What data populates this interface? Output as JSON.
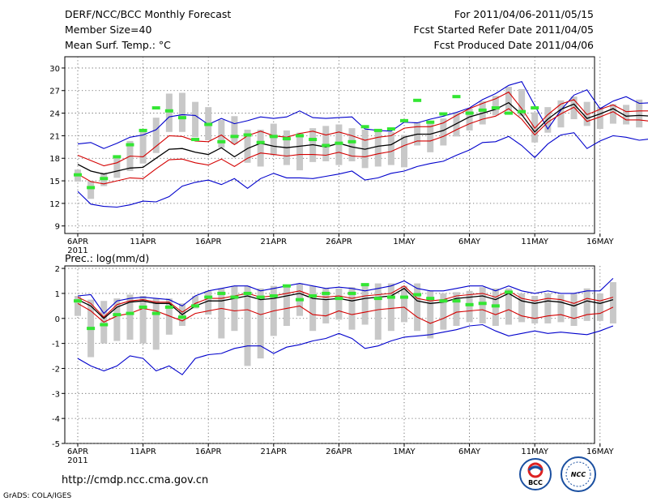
{
  "header": {
    "title": "DERF/NCC/BCC Monthly Forecast",
    "member_size": "Member Size=40",
    "variable": "Mean Surf. Temp.: °C",
    "period": "For 2011/04/06-2011/05/15",
    "started": "Fcst Started Refer Date 2011/04/05",
    "produced": "Fcst Produced Date 2011/04/06"
  },
  "footer": {
    "url": "http://cmdp.ncc.cma.gov.cn",
    "credit": "GrADS: COLA/IGES",
    "logo_bcc": "BCC",
    "logo_ncc": "NCC"
  },
  "colors": {
    "ensemble_mean": "#000000",
    "spread": "#d40000",
    "envelope": "#0000cc",
    "member_range": "#c8c8c8",
    "observed_marker": "#33e633",
    "grid": "#555555"
  },
  "chart_data": [
    {
      "type": "line",
      "title": "Mean Surf. Temp.: °C",
      "x_tick_labels": [
        "6APR",
        "11APR",
        "16APR",
        "21APR",
        "26APR",
        "1MAY",
        "6MAY",
        "11MAY",
        "16MAY"
      ],
      "x_start_year_label": "2011",
      "yticks": [
        "9",
        "12",
        "15",
        "18",
        "21",
        "24",
        "27",
        "30"
      ],
      "ylim": [
        8,
        31.5
      ],
      "series": [
        {
          "name": "ensemble_mean",
          "values": [
            17.2,
            16.3,
            15.9,
            16.3,
            16.7,
            16.8,
            18.0,
            19.2,
            19.3,
            18.8,
            18.5,
            19.4,
            18.2,
            19.3,
            20.0,
            19.6,
            19.4,
            19.6,
            19.8,
            19.5,
            20.0,
            19.5,
            19.2,
            19.6,
            19.8,
            20.8,
            21.2,
            21.2,
            21.7,
            22.6,
            23.5,
            24.0,
            24.5,
            25.4,
            23.8,
            21.5,
            23.2,
            24.5,
            25.2,
            23.3,
            23.9,
            24.6,
            23.6,
            23.7,
            23.6
          ]
        },
        {
          "name": "upper_spread",
          "values": [
            18.4,
            17.7,
            17.0,
            17.4,
            18.3,
            18.2,
            19.6,
            21.0,
            20.9,
            20.3,
            20.2,
            21.1,
            19.8,
            21.0,
            21.6,
            21.0,
            20.8,
            21.3,
            21.6,
            21.1,
            21.5,
            21.0,
            20.4,
            20.8,
            21.0,
            22.0,
            22.2,
            22.2,
            22.7,
            23.7,
            24.6,
            25.3,
            25.9,
            26.8,
            24.6,
            22.0,
            23.8,
            25.2,
            25.8,
            23.8,
            24.5,
            25.1,
            24.2,
            24.3,
            24.3
          ]
        },
        {
          "name": "lower_spread",
          "values": [
            15.9,
            14.9,
            14.6,
            15.0,
            15.4,
            15.3,
            16.6,
            17.8,
            17.9,
            17.4,
            17.1,
            17.9,
            16.9,
            18.0,
            18.7,
            18.5,
            18.3,
            18.5,
            18.5,
            18.4,
            18.8,
            18.3,
            18.2,
            18.6,
            18.9,
            19.7,
            20.3,
            20.3,
            20.9,
            21.8,
            22.6,
            23.2,
            23.6,
            24.6,
            23.2,
            21.1,
            22.8,
            23.9,
            24.8,
            22.9,
            23.5,
            24.2,
            23.1,
            23.1,
            22.9
          ]
        },
        {
          "name": "upper_envelope",
          "values": [
            19.9,
            20.1,
            19.3,
            20.0,
            20.8,
            21.1,
            21.8,
            23.5,
            23.8,
            23.7,
            22.5,
            23.3,
            22.6,
            23.0,
            23.5,
            23.3,
            23.5,
            24.3,
            23.4,
            23.3,
            23.4,
            23.5,
            21.9,
            21.7,
            21.6,
            22.8,
            22.7,
            23.2,
            23.6,
            24.1,
            24.7,
            25.8,
            26.6,
            27.7,
            28.2,
            25.0,
            21.9,
            24.4,
            26.4,
            27.1,
            24.6,
            25.6,
            26.2,
            25.3,
            25.4,
            25.7
          ]
        },
        {
          "name": "lower_envelope",
          "values": [
            13.6,
            11.9,
            11.6,
            11.5,
            11.8,
            12.3,
            12.2,
            12.9,
            14.3,
            14.8,
            15.1,
            14.5,
            15.3,
            14.0,
            15.3,
            16.0,
            15.4,
            15.4,
            15.3,
            15.6,
            15.9,
            16.3,
            15.1,
            15.4,
            16.0,
            16.3,
            16.9,
            17.3,
            17.6,
            18.4,
            19.1,
            20.1,
            20.2,
            20.9,
            19.7,
            18.1,
            19.9,
            21.1,
            21.4,
            19.3,
            20.3,
            21.0,
            20.8,
            20.4,
            20.6
          ]
        },
        {
          "name": "member_range_max",
          "values": [
            16.5,
            15.0,
            16.1,
            18.4,
            20.3,
            21.7,
            23.4,
            26.6,
            26.7,
            25.5,
            24.8,
            23.1,
            23.6,
            21.8,
            21.8,
            22.6,
            21.7,
            21.4,
            22.0,
            22.3,
            22.5,
            22.0,
            21.8,
            21.7,
            21.5,
            21.1,
            22.8,
            22.9,
            23.3,
            24.1,
            24.6,
            25.6,
            26.3,
            27.5,
            27.2,
            24.1,
            24.8,
            25.7,
            26.2,
            25.5,
            24.8,
            25.2,
            25.1,
            25.8,
            25.6,
            25.9
          ]
        },
        {
          "name": "member_range_min",
          "values": [
            14.9,
            12.6,
            14.3,
            15.4,
            16.3,
            17.3,
            18.7,
            21.5,
            21.5,
            20.8,
            20.4,
            19.4,
            19.9,
            17.4,
            16.9,
            18.4,
            17.1,
            16.4,
            17.5,
            17.6,
            17.1,
            17.6,
            16.7,
            16.9,
            17.1,
            16.8,
            19.7,
            18.8,
            19.7,
            20.9,
            21.7,
            22.5,
            23.7,
            24.3,
            23.6,
            20.1,
            21.4,
            22.1,
            23.2,
            22.3,
            21.9,
            22.6,
            22.5,
            22.1,
            22.2,
            22.3
          ]
        },
        {
          "name": "observed",
          "values": [
            15.8,
            14.1,
            15.3,
            18.2,
            19.8,
            21.7,
            24.7,
            24.3,
            23.4,
            20.5,
            22.5,
            20.2,
            20.9,
            21.1,
            20.1,
            20.9,
            20.6,
            21.0,
            20.5,
            19.7,
            20.0,
            20.2,
            22.2,
            21.7,
            21.9,
            23.0,
            25.7,
            22.8,
            23.9,
            26.2,
            24.0,
            24.4,
            24.7,
            24.0,
            24.2,
            24.7
          ]
        }
      ]
    },
    {
      "type": "line",
      "title": "Prec.: log(mm/d)",
      "x_tick_labels": [
        "6APR",
        "11APR",
        "16APR",
        "21APR",
        "26APR",
        "1MAY",
        "6MAY",
        "11MAY",
        "16MAY"
      ],
      "x_start_year_label": "2011",
      "yticks": [
        "-5",
        "-4",
        "-3",
        "-2",
        "-1",
        "0",
        "1",
        "2"
      ],
      "ylim": [
        -5,
        2.1
      ],
      "series": [
        {
          "name": "ensemble_mean",
          "values": [
            0.75,
            0.5,
            0.0,
            0.45,
            0.65,
            0.7,
            0.6,
            0.6,
            0.15,
            0.5,
            0.7,
            0.7,
            0.8,
            0.9,
            0.75,
            0.8,
            0.9,
            1.0,
            0.8,
            0.75,
            0.8,
            0.7,
            0.8,
            0.85,
            0.9,
            1.2,
            0.7,
            0.6,
            0.65,
            0.8,
            0.85,
            0.9,
            0.75,
            1.0,
            0.7,
            0.6,
            0.7,
            0.65,
            0.5,
            0.7,
            0.6,
            0.75
          ]
        },
        {
          "name": "upper_spread",
          "values": [
            0.85,
            0.6,
            0.05,
            0.55,
            0.7,
            0.75,
            0.65,
            0.65,
            0.25,
            0.6,
            0.8,
            0.8,
            0.9,
            1.0,
            0.85,
            0.9,
            1.0,
            1.1,
            0.9,
            0.85,
            0.9,
            0.8,
            0.9,
            0.95,
            1.0,
            1.3,
            0.8,
            0.7,
            0.75,
            0.9,
            0.95,
            1.0,
            0.85,
            1.1,
            0.8,
            0.7,
            0.8,
            0.75,
            0.6,
            0.8,
            0.7,
            0.85
          ]
        },
        {
          "name": "lower_spread",
          "values": [
            0.6,
            0.3,
            -0.15,
            0.1,
            0.2,
            0.4,
            0.3,
            0.1,
            -0.1,
            0.2,
            0.3,
            0.4,
            0.3,
            0.35,
            0.15,
            0.3,
            0.4,
            0.5,
            0.15,
            0.1,
            0.3,
            0.15,
            0.25,
            0.35,
            0.4,
            0.45,
            0.05,
            -0.2,
            0.0,
            0.25,
            0.3,
            0.35,
            0.15,
            0.35,
            0.1,
            0.0,
            0.1,
            0.15,
            0.0,
            0.15,
            0.2,
            0.45
          ]
        },
        {
          "name": "upper_envelope",
          "values": [
            0.9,
            0.95,
            0.2,
            0.7,
            0.8,
            0.85,
            0.8,
            0.75,
            0.5,
            0.9,
            1.1,
            1.2,
            1.3,
            1.3,
            1.1,
            1.2,
            1.3,
            1.4,
            1.3,
            1.2,
            1.25,
            1.2,
            1.1,
            1.2,
            1.3,
            1.5,
            1.2,
            1.1,
            1.1,
            1.2,
            1.3,
            1.3,
            1.1,
            1.3,
            1.1,
            1.0,
            1.1,
            1.0,
            1.0,
            1.1,
            1.1,
            1.6
          ]
        },
        {
          "name": "lower_envelope",
          "values": [
            -1.6,
            -1.9,
            -2.1,
            -1.9,
            -1.5,
            -1.6,
            -2.1,
            -1.9,
            -2.25,
            -1.6,
            -1.45,
            -1.4,
            -1.2,
            -1.1,
            -1.1,
            -1.4,
            -1.15,
            -1.05,
            -0.9,
            -0.8,
            -0.6,
            -0.8,
            -1.2,
            -1.1,
            -0.9,
            -0.75,
            -0.7,
            -0.65,
            -0.55,
            -0.45,
            -0.3,
            -0.25,
            -0.5,
            -0.7,
            -0.6,
            -0.5,
            -0.6,
            -0.55,
            -0.6,
            -0.65,
            -0.5,
            -0.3
          ]
        },
        {
          "name": "member_range_max",
          "values": [
            0.9,
            0.75,
            0.7,
            0.8,
            0.95,
            0.9,
            0.8,
            0.8,
            0.6,
            0.9,
            1.1,
            1.2,
            1.3,
            1.3,
            1.2,
            1.3,
            1.25,
            1.4,
            1.3,
            1.2,
            1.2,
            1.25,
            1.3,
            1.4,
            1.4,
            1.3,
            1.4,
            1.1,
            1.0,
            1.05,
            1.1,
            1.25,
            1.2,
            1.2,
            1.0,
            0.9,
            1.0,
            0.95,
            1.0,
            1.2,
            1.0,
            1.45
          ]
        },
        {
          "name": "member_range_min",
          "values": [
            0.1,
            -1.55,
            -1.0,
            -0.9,
            -0.85,
            -1.0,
            -1.25,
            -0.65,
            -0.3,
            0.4,
            0.15,
            -0.8,
            -0.5,
            -1.9,
            -1.6,
            -0.7,
            -0.3,
            0.1,
            -0.5,
            -0.2,
            -0.05,
            -0.45,
            -0.25,
            -0.85,
            -0.5,
            -0.15,
            -0.5,
            -0.8,
            -0.45,
            -0.3,
            -0.15,
            -0.2,
            -0.3,
            -0.25,
            -0.15,
            -0.2,
            -0.2,
            -0.15,
            -0.3,
            -0.1,
            -0.1,
            -0.2
          ]
        },
        {
          "name": "observed",
          "values": [
            0.7,
            -0.4,
            -0.25,
            0.15,
            0.2,
            0.45,
            0.2,
            0.45,
            0.05,
            0.5,
            0.85,
            1.0,
            0.85,
            1.0,
            0.85,
            0.9,
            1.3,
            0.75,
            0.9,
            1.0,
            0.8,
            1.0,
            1.35,
            0.8,
            0.85,
            0.85,
            0.95,
            0.8,
            0.7,
            0.7,
            0.55,
            0.6,
            0.5,
            1.05
          ]
        }
      ]
    }
  ]
}
